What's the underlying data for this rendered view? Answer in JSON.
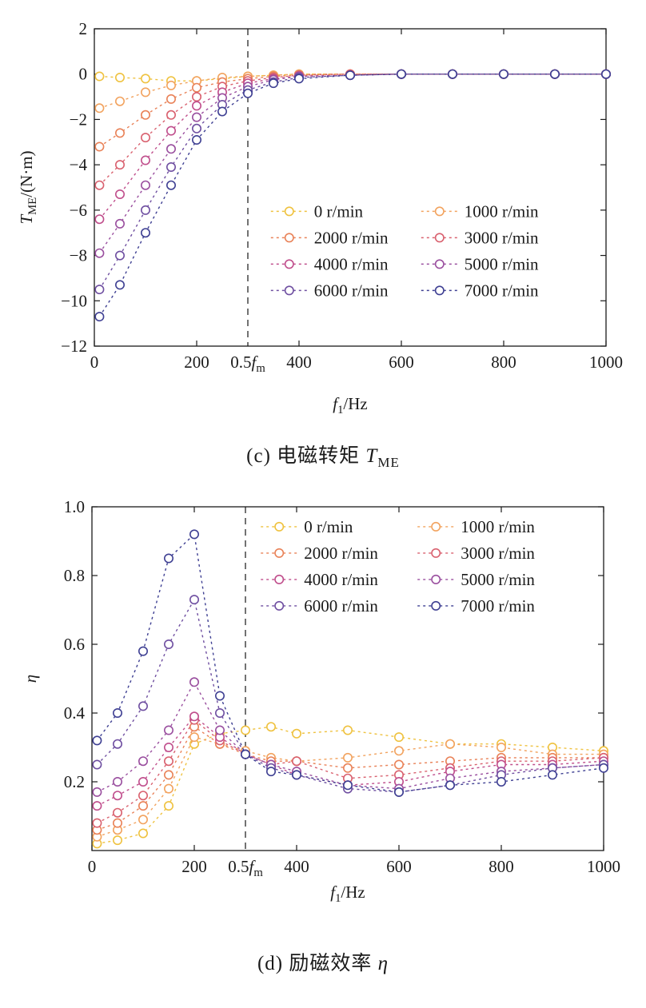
{
  "captions": {
    "c": {
      "prefix": "(c)",
      "text": " 电磁转矩 ",
      "symbol": "T",
      "symbol_sub": "ME"
    },
    "d": {
      "prefix": "(d)",
      "text": " 励磁效率 ",
      "symbol": "η",
      "symbol_sub": ""
    }
  },
  "colors": {
    "axis": "#1a1a1a",
    "vline": "#444444",
    "marker_fill": "#ffffff"
  },
  "chart_data": [
    {
      "id": "chart-c",
      "type": "line",
      "title": "",
      "xlabel": [
        {
          "t": "f",
          "i": true
        },
        {
          "t": "1",
          "sub": true
        },
        {
          "t": "/Hz"
        }
      ],
      "ylabel": [
        {
          "t": "T",
          "i": true
        },
        {
          "t": "ME",
          "sub": true
        },
        {
          "t": "/(N·m)"
        }
      ],
      "xlim": [
        0,
        1000
      ],
      "ylim": [
        -12,
        2
      ],
      "grid": false,
      "legend_position": "middle-right",
      "legend_columns": 2,
      "vline": 300,
      "yticks": [
        {
          "v": 2,
          "label": "2"
        },
        {
          "v": 0,
          "label": "0"
        },
        {
          "v": -2,
          "label": "−2"
        },
        {
          "v": -4,
          "label": "−4"
        },
        {
          "v": -6,
          "label": "−6"
        },
        {
          "v": -8,
          "label": "−8"
        },
        {
          "v": -10,
          "label": "−10"
        },
        {
          "v": -12,
          "label": "−12"
        }
      ],
      "xticks": [
        {
          "v": 0,
          "label": "0"
        },
        {
          "v": 200,
          "label": "200"
        },
        {
          "v": 300,
          "label": "0.5fm",
          "no_tick": true,
          "parts": [
            {
              "t": "0.5"
            },
            {
              "t": "f",
              "i": true
            },
            {
              "t": "m",
              "sub": true
            }
          ]
        },
        {
          "v": 400,
          "label": "400"
        },
        {
          "v": 600,
          "label": "600"
        },
        {
          "v": 800,
          "label": "800"
        },
        {
          "v": 1000,
          "label": "1000"
        }
      ],
      "x": [
        10,
        50,
        100,
        150,
        200,
        250,
        300,
        350,
        400,
        500,
        600,
        700,
        800,
        900,
        1000
      ],
      "series": [
        {
          "name": "0 r/min",
          "color": "#EFC23F",
          "values": [
            -0.1,
            -0.15,
            -0.2,
            -0.3,
            -0.3,
            -0.2,
            -0.1,
            -0.05,
            0,
            0,
            0,
            0,
            0,
            0,
            0
          ]
        },
        {
          "name": "1000 r/min",
          "color": "#F2A35F",
          "values": [
            -1.5,
            -1.2,
            -0.8,
            -0.5,
            -0.3,
            -0.15,
            -0.1,
            -0.05,
            0,
            0,
            0,
            0,
            0,
            0,
            0
          ]
        },
        {
          "name": "2000 r/min",
          "color": "#E98258",
          "values": [
            -3.2,
            -2.6,
            -1.8,
            -1.1,
            -0.6,
            -0.35,
            -0.2,
            -0.1,
            -0.05,
            0,
            0,
            0,
            0,
            0,
            0
          ]
        },
        {
          "name": "3000 r/min",
          "color": "#D9616F",
          "values": [
            -4.9,
            -4.0,
            -2.8,
            -1.8,
            -1.0,
            -0.55,
            -0.3,
            -0.15,
            -0.05,
            0,
            0,
            0,
            0,
            0,
            0
          ]
        },
        {
          "name": "4000 r/min",
          "color": "#C04E8C",
          "values": [
            -6.4,
            -5.3,
            -3.8,
            -2.5,
            -1.4,
            -0.8,
            -0.4,
            -0.2,
            -0.1,
            -0.05,
            0,
            0,
            0,
            0,
            0
          ]
        },
        {
          "name": "5000 r/min",
          "color": "#9A4F9F",
          "values": [
            -7.9,
            -6.6,
            -4.9,
            -3.3,
            -1.9,
            -1.05,
            -0.55,
            -0.25,
            -0.1,
            -0.05,
            0,
            0,
            0,
            0,
            0
          ]
        },
        {
          "name": "6000 r/min",
          "color": "#6F4FA1",
          "values": [
            -9.5,
            -8.0,
            -6.0,
            -4.1,
            -2.4,
            -1.35,
            -0.7,
            -0.35,
            -0.15,
            -0.05,
            0,
            0,
            0,
            0,
            0
          ]
        },
        {
          "name": "7000 r/min",
          "color": "#3F4093",
          "values": [
            -10.7,
            -9.3,
            -7.0,
            -4.9,
            -2.9,
            -1.65,
            -0.85,
            -0.4,
            -0.2,
            -0.05,
            0,
            0,
            0,
            0,
            0
          ]
        }
      ]
    },
    {
      "id": "chart-d",
      "type": "line",
      "title": "",
      "xlabel": [
        {
          "t": "f",
          "i": true
        },
        {
          "t": "1",
          "sub": true
        },
        {
          "t": "/Hz"
        }
      ],
      "ylabel": [
        {
          "t": "η",
          "i": true
        }
      ],
      "xlim": [
        0,
        1000
      ],
      "ylim": [
        0,
        1.0
      ],
      "grid": false,
      "legend_position": "top",
      "legend_columns": 2,
      "vline": 300,
      "yticks": [
        {
          "v": 1.0,
          "label": "1.0"
        },
        {
          "v": 0.8,
          "label": "0.8"
        },
        {
          "v": 0.6,
          "label": "0.6"
        },
        {
          "v": 0.4,
          "label": "0.4"
        },
        {
          "v": 0.2,
          "label": "0.2"
        }
      ],
      "xticks": [
        {
          "v": 0,
          "label": "0"
        },
        {
          "v": 200,
          "label": "200"
        },
        {
          "v": 300,
          "label": "0.5fm",
          "no_tick": true,
          "parts": [
            {
              "t": "0.5"
            },
            {
              "t": "f",
              "i": true
            },
            {
              "t": "m",
              "sub": true
            }
          ]
        },
        {
          "v": 400,
          "label": "400"
        },
        {
          "v": 600,
          "label": "600"
        },
        {
          "v": 800,
          "label": "800"
        },
        {
          "v": 1000,
          "label": "1000"
        }
      ],
      "x": [
        10,
        50,
        100,
        150,
        200,
        250,
        300,
        350,
        400,
        500,
        600,
        700,
        800,
        900,
        1000
      ],
      "series": [
        {
          "name": "0 r/min",
          "color": "#EFC23F",
          "values": [
            0.02,
            0.03,
            0.05,
            0.13,
            0.31,
            0.34,
            0.35,
            0.36,
            0.34,
            0.35,
            0.33,
            0.31,
            0.31,
            0.3,
            0.29
          ]
        },
        {
          "name": "1000 r/min",
          "color": "#F2A35F",
          "values": [
            0.04,
            0.06,
            0.09,
            0.18,
            0.33,
            0.31,
            0.29,
            0.27,
            0.26,
            0.27,
            0.29,
            0.31,
            0.3,
            0.28,
            0.28
          ]
        },
        {
          "name": "2000 r/min",
          "color": "#E98258",
          "values": [
            0.06,
            0.08,
            0.13,
            0.22,
            0.36,
            0.31,
            0.28,
            0.26,
            0.26,
            0.24,
            0.25,
            0.26,
            0.27,
            0.27,
            0.27
          ]
        },
        {
          "name": "3000 r/min",
          "color": "#D9616F",
          "values": [
            0.08,
            0.11,
            0.16,
            0.26,
            0.38,
            0.32,
            0.28,
            0.25,
            0.26,
            0.21,
            0.22,
            0.24,
            0.26,
            0.26,
            0.27
          ]
        },
        {
          "name": "4000 r/min",
          "color": "#C04E8C",
          "values": [
            0.13,
            0.16,
            0.2,
            0.3,
            0.39,
            0.33,
            0.28,
            0.25,
            0.22,
            0.19,
            0.2,
            0.23,
            0.25,
            0.25,
            0.26
          ]
        },
        {
          "name": "5000 r/min",
          "color": "#9A4F9F",
          "values": [
            0.17,
            0.2,
            0.26,
            0.35,
            0.49,
            0.35,
            0.28,
            0.25,
            0.23,
            0.19,
            0.18,
            0.21,
            0.23,
            0.24,
            0.25
          ]
        },
        {
          "name": "6000 r/min",
          "color": "#6F4FA1",
          "values": [
            0.25,
            0.31,
            0.42,
            0.6,
            0.73,
            0.4,
            0.28,
            0.24,
            0.22,
            0.18,
            0.17,
            0.19,
            0.22,
            0.24,
            0.25
          ]
        },
        {
          "name": "7000 r/min",
          "color": "#3F4093",
          "values": [
            0.32,
            0.4,
            0.58,
            0.85,
            0.92,
            0.45,
            0.28,
            0.23,
            0.22,
            0.19,
            0.17,
            0.19,
            0.2,
            0.22,
            0.24
          ]
        }
      ]
    }
  ]
}
